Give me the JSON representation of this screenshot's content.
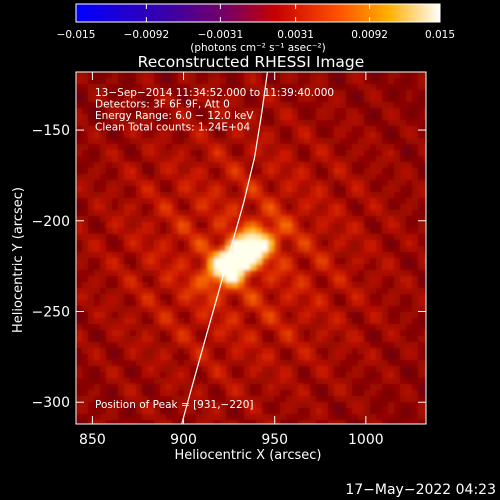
{
  "chart_data": {
    "type": "heatmap",
    "title": "Reconstructed RHESSI Image",
    "xlabel": "Heliocentric X (arcsec)",
    "ylabel": "Heliocentric Y (arcsec)",
    "xlim": [
      841,
      1033
    ],
    "ylim": [
      -312,
      -118
    ],
    "xticks": [
      850,
      900,
      950,
      1000
    ],
    "xtick_labels": [
      "850",
      "900",
      "950",
      "1000"
    ],
    "yticks": [
      -150,
      -200,
      -250,
      -300
    ],
    "ytick_labels": [
      "−150",
      "−200",
      "−250",
      "−300"
    ],
    "colorbar": {
      "colormap": "RHESSI red temperature (blue-purple-red-orange-yellow-white)",
      "range": [
        -0.015,
        0.015
      ],
      "ticks": [
        -0.015,
        -0.0092,
        -0.0031,
        0.0031,
        0.0092,
        0.015
      ],
      "tick_labels": [
        "−0.015",
        "−0.0092",
        "−0.0031",
        "0.0031",
        "0.0092",
        "0.015"
      ],
      "unit_label": "(photons cm⁻² s⁻¹ asec⁻²)"
    },
    "annotations": [
      "13−Sep−2014 11:34:52.000 to 11:39:40.000",
      "Detectors: 3F 6F 9F, Att 0",
      "Energy Range: 6.0 − 12.0 keV",
      "Clean     Total counts: 1.24E+04"
    ],
    "peak_label": "Position of Peak = [931,−220]",
    "peak": [
      931,
      -220
    ],
    "limb_curve": [
      [
        899,
        -312
      ],
      [
        905,
        -290
      ],
      [
        912,
        -265
      ],
      [
        919,
        -240
      ],
      [
        926,
        -215
      ],
      [
        933,
        -190
      ],
      [
        939,
        -165
      ],
      [
        943,
        -140
      ],
      [
        946,
        -118
      ]
    ],
    "grid": false
  },
  "footer": {
    "date": "17−May−2022 04:23"
  }
}
